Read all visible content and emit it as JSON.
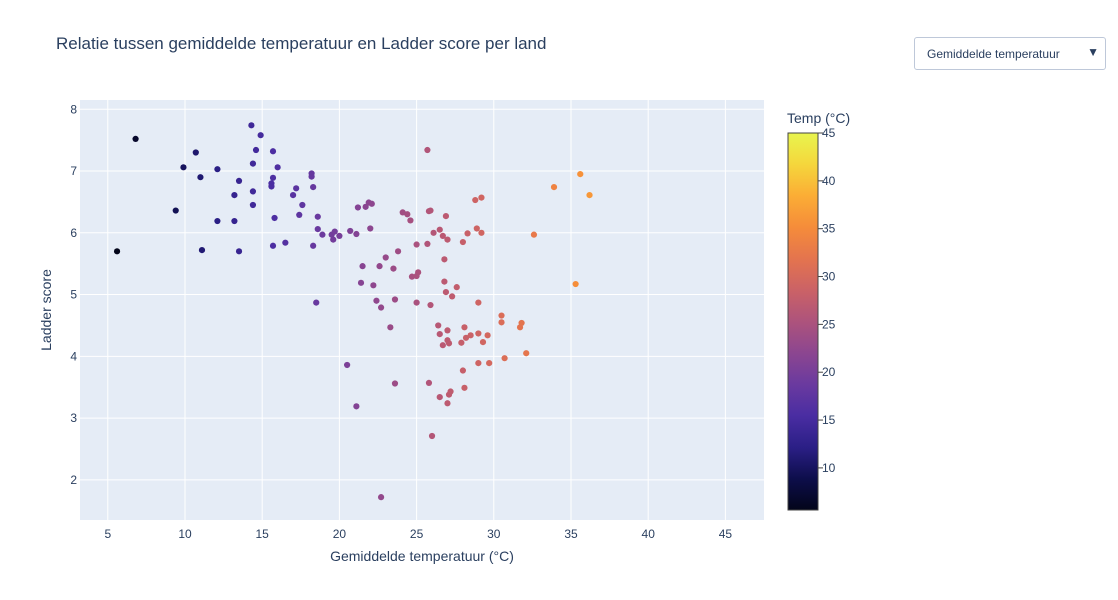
{
  "chart_data": {
    "type": "scatter",
    "title": "Relatie tussen gemiddelde temperatuur en Ladder score per land",
    "xlabel": "Gemiddelde temperatuur (°C)",
    "ylabel": "Ladder score",
    "xlim": [
      3.2,
      47.5
    ],
    "ylim": [
      1.35,
      8.15
    ],
    "xticks": [
      5,
      10,
      15,
      20,
      25,
      30,
      35,
      40,
      45
    ],
    "yticks": [
      2,
      3,
      4,
      5,
      6,
      7,
      8
    ],
    "grid": true,
    "colorbar": {
      "title": "Temp (°C)",
      "min": 5.6,
      "max": 45,
      "ticks": [
        10,
        15,
        20,
        25,
        30,
        35,
        40,
        45
      ],
      "colors": [
        "#0d0887",
        "#46039f",
        "#7201a8",
        "#9c179e",
        "#bd3786",
        "#d8576b",
        "#ed7953",
        "#fb9f3a",
        "#fdca26",
        "#f0f921"
      ]
    },
    "points": [
      {
        "x": 5.6,
        "y": 5.7
      },
      {
        "x": 6.8,
        "y": 7.52
      },
      {
        "x": 9.4,
        "y": 6.36
      },
      {
        "x": 9.9,
        "y": 7.06
      },
      {
        "x": 10.7,
        "y": 7.3
      },
      {
        "x": 11.0,
        "y": 6.9
      },
      {
        "x": 11.1,
        "y": 5.72
      },
      {
        "x": 12.1,
        "y": 7.03
      },
      {
        "x": 12.1,
        "y": 6.19
      },
      {
        "x": 13.2,
        "y": 6.61
      },
      {
        "x": 13.2,
        "y": 6.19
      },
      {
        "x": 13.5,
        "y": 6.84
      },
      {
        "x": 13.5,
        "y": 5.7
      },
      {
        "x": 14.3,
        "y": 7.74
      },
      {
        "x": 14.4,
        "y": 7.12
      },
      {
        "x": 14.4,
        "y": 6.67
      },
      {
        "x": 14.4,
        "y": 6.45
      },
      {
        "x": 14.6,
        "y": 7.34
      },
      {
        "x": 14.9,
        "y": 7.58
      },
      {
        "x": 15.6,
        "y": 6.8
      },
      {
        "x": 15.6,
        "y": 6.75
      },
      {
        "x": 15.7,
        "y": 6.89
      },
      {
        "x": 15.7,
        "y": 7.32
      },
      {
        "x": 15.7,
        "y": 5.79
      },
      {
        "x": 15.8,
        "y": 6.24
      },
      {
        "x": 16.0,
        "y": 7.06
      },
      {
        "x": 16.5,
        "y": 5.84
      },
      {
        "x": 17.0,
        "y": 6.61
      },
      {
        "x": 17.2,
        "y": 6.72
      },
      {
        "x": 17.4,
        "y": 6.29
      },
      {
        "x": 17.6,
        "y": 6.45
      },
      {
        "x": 18.2,
        "y": 6.96
      },
      {
        "x": 18.2,
        "y": 6.91
      },
      {
        "x": 18.3,
        "y": 6.74
      },
      {
        "x": 18.3,
        "y": 5.79
      },
      {
        "x": 18.5,
        "y": 4.87
      },
      {
        "x": 18.6,
        "y": 6.26
      },
      {
        "x": 18.6,
        "y": 6.06
      },
      {
        "x": 18.9,
        "y": 5.97
      },
      {
        "x": 19.5,
        "y": 5.97
      },
      {
        "x": 19.6,
        "y": 5.89
      },
      {
        "x": 19.7,
        "y": 6.02
      },
      {
        "x": 20.0,
        "y": 5.95
      },
      {
        "x": 20.5,
        "y": 3.86
      },
      {
        "x": 20.7,
        "y": 6.03
      },
      {
        "x": 21.1,
        "y": 5.98
      },
      {
        "x": 21.1,
        "y": 3.19
      },
      {
        "x": 21.2,
        "y": 6.41
      },
      {
        "x": 21.4,
        "y": 5.19
      },
      {
        "x": 21.5,
        "y": 5.46
      },
      {
        "x": 21.7,
        "y": 6.42
      },
      {
        "x": 21.9,
        "y": 6.49
      },
      {
        "x": 22.0,
        "y": 6.07
      },
      {
        "x": 22.1,
        "y": 6.47
      },
      {
        "x": 22.2,
        "y": 5.15
      },
      {
        "x": 22.4,
        "y": 4.9
      },
      {
        "x": 22.6,
        "y": 5.46
      },
      {
        "x": 22.7,
        "y": 4.79
      },
      {
        "x": 22.7,
        "y": 1.72
      },
      {
        "x": 23.0,
        "y": 5.6
      },
      {
        "x": 23.3,
        "y": 4.47
      },
      {
        "x": 23.5,
        "y": 5.42
      },
      {
        "x": 23.6,
        "y": 4.92
      },
      {
        "x": 23.6,
        "y": 3.56
      },
      {
        "x": 23.8,
        "y": 5.7
      },
      {
        "x": 24.1,
        "y": 6.33
      },
      {
        "x": 24.4,
        "y": 6.3
      },
      {
        "x": 24.6,
        "y": 6.2
      },
      {
        "x": 24.7,
        "y": 5.29
      },
      {
        "x": 25.0,
        "y": 5.81
      },
      {
        "x": 25.0,
        "y": 4.87
      },
      {
        "x": 25.0,
        "y": 5.3
      },
      {
        "x": 25.1,
        "y": 5.36
      },
      {
        "x": 25.7,
        "y": 7.34
      },
      {
        "x": 25.7,
        "y": 5.82
      },
      {
        "x": 25.8,
        "y": 6.35
      },
      {
        "x": 25.8,
        "y": 3.57
      },
      {
        "x": 25.9,
        "y": 6.36
      },
      {
        "x": 25.9,
        "y": 4.83
      },
      {
        "x": 26.0,
        "y": 2.71
      },
      {
        "x": 26.1,
        "y": 6.0
      },
      {
        "x": 26.4,
        "y": 4.5
      },
      {
        "x": 26.5,
        "y": 3.34
      },
      {
        "x": 26.5,
        "y": 6.05
      },
      {
        "x": 26.5,
        "y": 4.36
      },
      {
        "x": 26.7,
        "y": 4.18
      },
      {
        "x": 26.7,
        "y": 5.95
      },
      {
        "x": 26.8,
        "y": 5.57
      },
      {
        "x": 26.8,
        "y": 5.21
      },
      {
        "x": 26.9,
        "y": 6.27
      },
      {
        "x": 26.9,
        "y": 5.04
      },
      {
        "x": 27.0,
        "y": 3.24
      },
      {
        "x": 27.0,
        "y": 5.89
      },
      {
        "x": 27.0,
        "y": 4.42
      },
      {
        "x": 27.0,
        "y": 4.26
      },
      {
        "x": 27.1,
        "y": 3.38
      },
      {
        "x": 27.1,
        "y": 4.21
      },
      {
        "x": 27.2,
        "y": 3.43
      },
      {
        "x": 27.3,
        "y": 4.97
      },
      {
        "x": 27.6,
        "y": 5.12
      },
      {
        "x": 27.9,
        "y": 4.22
      },
      {
        "x": 28.0,
        "y": 5.85
      },
      {
        "x": 28.0,
        "y": 3.77
      },
      {
        "x": 28.1,
        "y": 4.47
      },
      {
        "x": 28.1,
        "y": 3.49
      },
      {
        "x": 28.2,
        "y": 4.3
      },
      {
        "x": 28.3,
        "y": 5.99
      },
      {
        "x": 28.5,
        "y": 4.34
      },
      {
        "x": 28.8,
        "y": 6.53
      },
      {
        "x": 28.9,
        "y": 6.07
      },
      {
        "x": 29.0,
        "y": 4.87
      },
      {
        "x": 29.0,
        "y": 3.89
      },
      {
        "x": 29.0,
        "y": 4.37
      },
      {
        "x": 29.2,
        "y": 6.57
      },
      {
        "x": 29.2,
        "y": 6.0
      },
      {
        "x": 29.3,
        "y": 4.23
      },
      {
        "x": 29.6,
        "y": 4.34
      },
      {
        "x": 29.7,
        "y": 3.89
      },
      {
        "x": 30.5,
        "y": 4.66
      },
      {
        "x": 30.5,
        "y": 4.55
      },
      {
        "x": 30.7,
        "y": 3.97
      },
      {
        "x": 31.7,
        "y": 4.47
      },
      {
        "x": 31.8,
        "y": 4.54
      },
      {
        "x": 32.1,
        "y": 4.05
      },
      {
        "x": 32.6,
        "y": 5.97
      },
      {
        "x": 33.9,
        "y": 6.74
      },
      {
        "x": 35.3,
        "y": 5.17
      },
      {
        "x": 35.6,
        "y": 6.95
      },
      {
        "x": 36.2,
        "y": 6.61
      }
    ]
  },
  "controls": {
    "dropdown_label": "Gemiddelde temperatuur",
    "dropdown_arrow": "▼"
  }
}
